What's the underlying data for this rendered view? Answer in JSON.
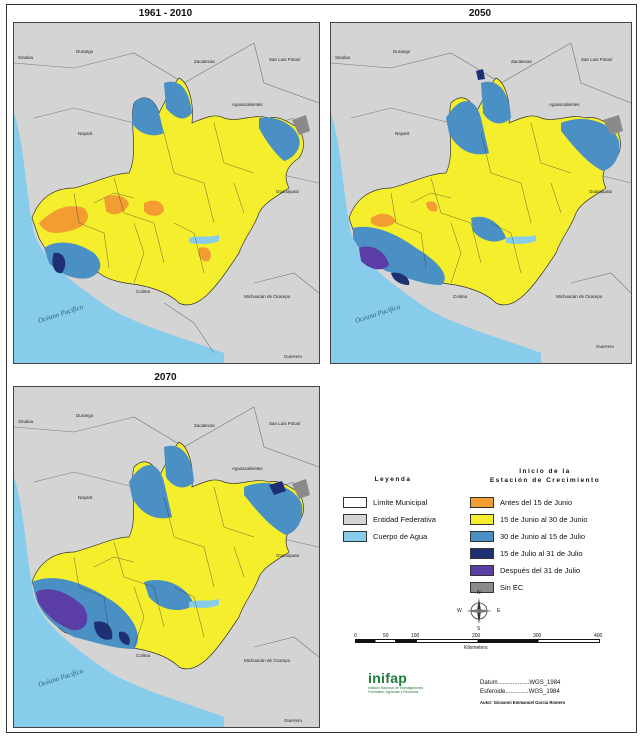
{
  "maps": [
    {
      "title": "1961 - 2010",
      "id": "m1"
    },
    {
      "title": "2050",
      "id": "m2"
    },
    {
      "title": "2070",
      "id": "m3"
    }
  ],
  "states": {
    "sinaloa": "Sinaloa",
    "durango": "Durango",
    "zacatecas": "Zacatecas",
    "san_luis": "San Luis Potosí",
    "nayarit": "Nayarit",
    "aguascalientes": "Aguascalientes",
    "guanajuato": "Guanajuato",
    "michoacan": "Michoacán de Ocampo",
    "colima": "Colima",
    "guerrero": "Guerrero",
    "ocean": "Océano Pacífico"
  },
  "legend": {
    "title": "Leyenda",
    "subtitle_line1": "Inicio de la",
    "subtitle_line2": "Estación de Crecimiento",
    "left_items": [
      {
        "label": "Límite Municipal",
        "color": "#ffffff"
      },
      {
        "label": "Entidad Federativa",
        "color": "#d4d4d4"
      },
      {
        "label": "Cuerpo de Agua",
        "color": "#88ccec"
      }
    ],
    "right_items": [
      {
        "label": "Antes del 15 de Junio",
        "color": "#f39c32"
      },
      {
        "label": "15 de Junio al 30 de Junio",
        "color": "#f4ee2c"
      },
      {
        "label": "30 de Junio al 15 de Julio",
        "color": "#4a90c4"
      },
      {
        "label": "15 de Julio al 31 de Julio",
        "color": "#1e2f74"
      },
      {
        "label": "Después del 31 de Julio",
        "color": "#5a3ea6"
      },
      {
        "label": "Sin EC",
        "color": "#8a8a8a"
      }
    ]
  },
  "scale": {
    "ticks": [
      "0",
      "50",
      "100",
      "200",
      "300",
      "400"
    ],
    "unit": "Kilometers"
  },
  "compass": {
    "n": "N",
    "s": "S",
    "e": "E",
    "w": "W"
  },
  "logo": {
    "name": "inifap",
    "sub": "Instituto Nacional de Investigaciones Forestales, Agrícolas y Pecuarios"
  },
  "datum": {
    "datum_label": "Datum",
    "datum_value": "WGS_1984",
    "esferoide_label": "Esferoide",
    "esferoide_value": "WGS_1984",
    "author": "Autor: Giovanni Emmanuel García Romero"
  },
  "colors": {
    "ocean": "#88ccec",
    "land": "#d4d4d4",
    "early": "#f39c32",
    "yellow": "#f4ee2c",
    "blue": "#4a90c4",
    "navy": "#1e2f74",
    "purple": "#5a3ea6",
    "grey": "#8a8a8a"
  }
}
